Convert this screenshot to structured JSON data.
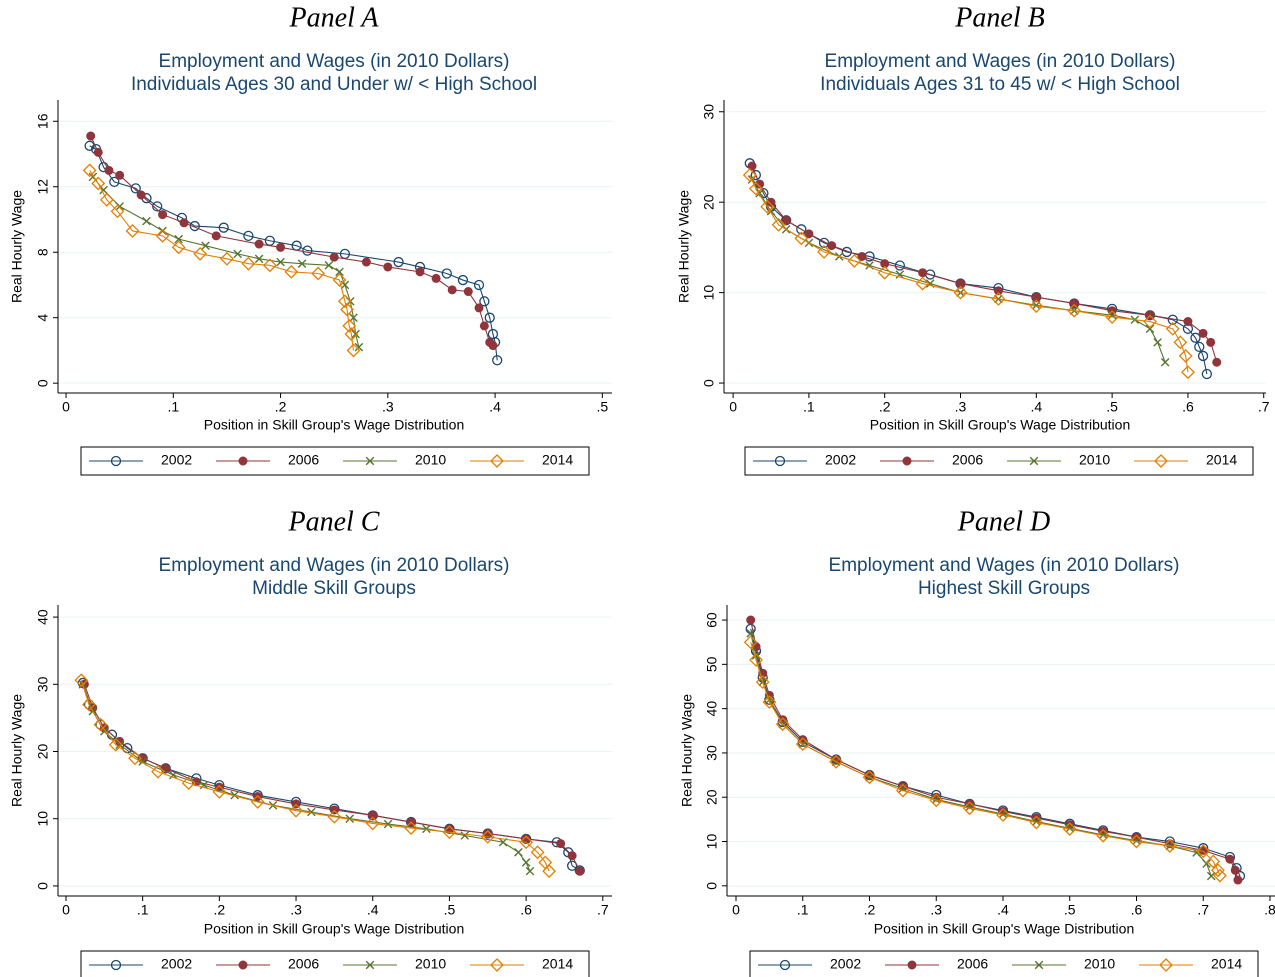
{
  "chart_data": [
    {
      "type": "line",
      "panel_label": "Panel A",
      "title": "Employment and Wages (in 2010 Dollars)",
      "subtitle": "Individuals Ages 30 and Under w/ < High School",
      "xlabel": "Position in Skill Group's Wage Distribution",
      "ylabel": "Real Hourly Wage",
      "xlim": [
        -0.0075,
        0.509
      ],
      "ylim": [
        -0.6,
        17.3
      ],
      "xticks": [
        0,
        {
          "value": 0.1,
          "label": ".1"
        },
        {
          "value": 0.2,
          "label": ".2"
        },
        {
          "value": 0.3,
          "label": ".3"
        },
        {
          "value": 0.4,
          "label": ".4"
        },
        {
          "value": 0.5,
          "label": ".5"
        }
      ],
      "yticks": [
        0,
        4,
        8,
        12,
        16
      ],
      "grid": true,
      "legend": "bottom",
      "series": [
        {
          "name": "2002",
          "color": "#1a476f",
          "marker": "circle-hollow",
          "x": [
            0.022,
            0.028,
            0.035,
            0.045,
            0.065,
            0.075,
            0.085,
            0.108,
            0.12,
            0.147,
            0.17,
            0.19,
            0.215,
            0.225,
            0.26,
            0.31,
            0.33,
            0.355,
            0.37,
            0.385,
            0.39,
            0.395,
            0.398,
            0.4,
            0.402
          ],
          "values": [
            14.5,
            14.3,
            13.2,
            12.3,
            11.9,
            11.3,
            10.8,
            10.1,
            9.6,
            9.5,
            9.0,
            8.7,
            8.4,
            8.1,
            7.9,
            7.4,
            7.1,
            6.7,
            6.3,
            6.0,
            5.0,
            4.0,
            3.0,
            2.5,
            1.4
          ]
        },
        {
          "name": "2006",
          "color": "#90353b",
          "marker": "circle-filled",
          "x": [
            0.023,
            0.03,
            0.04,
            0.05,
            0.07,
            0.09,
            0.11,
            0.14,
            0.18,
            0.2,
            0.25,
            0.28,
            0.3,
            0.33,
            0.345,
            0.36,
            0.375,
            0.385,
            0.39,
            0.395,
            0.398
          ],
          "values": [
            15.1,
            14.1,
            13.0,
            12.7,
            11.5,
            10.3,
            9.8,
            9.0,
            8.5,
            8.3,
            7.7,
            7.4,
            7.1,
            6.8,
            6.4,
            5.7,
            5.6,
            4.6,
            3.5,
            2.5,
            2.3
          ]
        },
        {
          "name": "2010",
          "color": "#55752f",
          "marker": "x",
          "x": [
            0.025,
            0.035,
            0.05,
            0.075,
            0.09,
            0.105,
            0.13,
            0.16,
            0.18,
            0.2,
            0.22,
            0.245,
            0.255,
            0.26,
            0.265,
            0.268,
            0.27,
            0.273
          ],
          "values": [
            12.6,
            11.8,
            10.8,
            9.9,
            9.3,
            8.8,
            8.4,
            7.9,
            7.6,
            7.4,
            7.3,
            7.2,
            6.8,
            6.0,
            5.0,
            4.0,
            3.0,
            2.2
          ]
        },
        {
          "name": "2014",
          "color": "#e37e00",
          "marker": "diamond-hollow",
          "x": [
            0.022,
            0.03,
            0.038,
            0.048,
            0.062,
            0.09,
            0.105,
            0.125,
            0.15,
            0.17,
            0.19,
            0.21,
            0.235,
            0.255,
            0.26,
            0.262,
            0.264,
            0.266,
            0.268
          ],
          "values": [
            13.0,
            12.2,
            11.2,
            10.5,
            9.3,
            9.0,
            8.3,
            7.9,
            7.6,
            7.3,
            7.2,
            6.8,
            6.7,
            6.3,
            5.0,
            4.5,
            3.5,
            3.0,
            2.0
          ]
        }
      ]
    },
    {
      "type": "line",
      "panel_label": "Panel B",
      "title": "Employment and Wages (in 2010 Dollars)",
      "subtitle": "Individuals Ages 31 to 45 w/ < High School",
      "xlabel": "Position in Skill Group's Wage Distribution",
      "ylabel": "Real Hourly Wage",
      "xlim": [
        -0.012,
        0.703
      ],
      "ylim": [
        -1.1,
        31.3
      ],
      "xticks": [
        0,
        {
          "value": 0.1,
          "label": ".1"
        },
        {
          "value": 0.2,
          "label": ".2"
        },
        {
          "value": 0.3,
          "label": ".3"
        },
        {
          "value": 0.4,
          "label": ".4"
        },
        {
          "value": 0.5,
          "label": ".5"
        },
        {
          "value": 0.6,
          "label": ".6"
        },
        {
          "value": 0.7,
          "label": ".7"
        }
      ],
      "yticks": [
        0,
        10,
        20,
        30
      ],
      "grid": true,
      "legend": "bottom",
      "series": [
        {
          "name": "2002",
          "color": "#1a476f",
          "marker": "circle-hollow",
          "x": [
            0.022,
            0.03,
            0.04,
            0.05,
            0.07,
            0.09,
            0.12,
            0.15,
            0.18,
            0.22,
            0.26,
            0.3,
            0.35,
            0.4,
            0.45,
            0.5,
            0.55,
            0.58,
            0.6,
            0.61,
            0.615,
            0.62,
            0.625
          ],
          "values": [
            24.3,
            23,
            21,
            19.5,
            18,
            17,
            15.5,
            14.5,
            14,
            13,
            12,
            11,
            10.5,
            9.5,
            8.8,
            8.2,
            7.5,
            7,
            6,
            5,
            4,
            3,
            1.0
          ]
        },
        {
          "name": "2006",
          "color": "#90353b",
          "marker": "circle-filled",
          "x": [
            0.025,
            0.035,
            0.05,
            0.07,
            0.1,
            0.13,
            0.17,
            0.2,
            0.25,
            0.3,
            0.35,
            0.4,
            0.45,
            0.5,
            0.55,
            0.6,
            0.62,
            0.63,
            0.638
          ],
          "values": [
            24,
            22,
            20,
            18,
            16.5,
            15.2,
            14,
            13.2,
            12.2,
            11,
            10.2,
            9.5,
            8.8,
            8,
            7.5,
            6.8,
            5.5,
            4.5,
            2.3
          ]
        },
        {
          "name": "2010",
          "color": "#55752f",
          "marker": "x",
          "x": [
            0.025,
            0.035,
            0.05,
            0.07,
            0.1,
            0.14,
            0.18,
            0.22,
            0.26,
            0.3,
            0.35,
            0.4,
            0.45,
            0.5,
            0.53,
            0.55,
            0.56,
            0.57
          ],
          "values": [
            22.5,
            21,
            19,
            17,
            15.5,
            14,
            13,
            12,
            11,
            10,
            9.3,
            8.6,
            8,
            7.5,
            7,
            6,
            4.5,
            2.3
          ]
        },
        {
          "name": "2014",
          "color": "#e37e00",
          "marker": "diamond-hollow",
          "x": [
            0.022,
            0.03,
            0.045,
            0.06,
            0.09,
            0.12,
            0.16,
            0.2,
            0.25,
            0.3,
            0.35,
            0.4,
            0.45,
            0.5,
            0.55,
            0.58,
            0.59,
            0.597,
            0.6
          ],
          "values": [
            23,
            21.5,
            19.5,
            17.5,
            16,
            14.5,
            13.5,
            12.2,
            11,
            10,
            9.3,
            8.5,
            8,
            7.3,
            6.8,
            6,
            4.5,
            3,
            1.2
          ]
        }
      ]
    },
    {
      "type": "line",
      "panel_label": "Panel C",
      "title": "Employment and Wages (in 2010 Dollars)",
      "subtitle": "Middle Skill Groups",
      "xlabel": "Position in Skill Group's Wage Distribution",
      "ylabel": "Real Hourly Wage",
      "xlim": [
        -0.0104,
        0.712
      ],
      "ylim": [
        -1.5,
        41.8
      ],
      "xticks": [
        0,
        {
          "value": 0.1,
          "label": ".1"
        },
        {
          "value": 0.2,
          "label": ".2"
        },
        {
          "value": 0.3,
          "label": ".3"
        },
        {
          "value": 0.4,
          "label": ".4"
        },
        {
          "value": 0.5,
          "label": ".5"
        },
        {
          "value": 0.6,
          "label": ".6"
        },
        {
          "value": 0.7,
          "label": ".7"
        }
      ],
      "yticks": [
        0,
        10,
        20,
        30,
        40
      ],
      "grid": true,
      "legend": "bottom",
      "series": [
        {
          "name": "2002",
          "color": "#1a476f",
          "marker": "circle-hollow",
          "x": [
            0.022,
            0.03,
            0.045,
            0.06,
            0.08,
            0.1,
            0.13,
            0.17,
            0.2,
            0.25,
            0.3,
            0.35,
            0.4,
            0.45,
            0.5,
            0.55,
            0.6,
            0.64,
            0.655,
            0.66,
            0.67
          ],
          "values": [
            30.2,
            27,
            24,
            22.5,
            20.5,
            19,
            17.5,
            16,
            15,
            13.5,
            12.5,
            11.5,
            10.5,
            9.5,
            8.5,
            7.8,
            7,
            6.5,
            5,
            3,
            2.3
          ]
        },
        {
          "name": "2006",
          "color": "#90353b",
          "marker": "circle-filled",
          "x": [
            0.024,
            0.035,
            0.05,
            0.07,
            0.1,
            0.13,
            0.17,
            0.2,
            0.25,
            0.3,
            0.35,
            0.4,
            0.45,
            0.5,
            0.55,
            0.6,
            0.645,
            0.66,
            0.67
          ],
          "values": [
            30,
            26.5,
            23.5,
            21.5,
            19,
            17.5,
            15.5,
            14.7,
            13.3,
            12.2,
            11.3,
            10.5,
            9.5,
            8.5,
            7.8,
            7,
            6.3,
            4.5,
            2.2
          ]
        },
        {
          "name": "2010",
          "color": "#55752f",
          "marker": "x",
          "x": [
            0.022,
            0.035,
            0.05,
            0.07,
            0.1,
            0.14,
            0.18,
            0.22,
            0.27,
            0.32,
            0.37,
            0.42,
            0.47,
            0.52,
            0.57,
            0.59,
            0.6,
            0.605
          ],
          "values": [
            30,
            26,
            23,
            21,
            18.5,
            16.5,
            15,
            13.5,
            12,
            11,
            10,
            9.2,
            8.5,
            7.5,
            6.5,
            5,
            3.5,
            2.2
          ]
        },
        {
          "name": "2014",
          "color": "#e37e00",
          "marker": "diamond-hollow",
          "x": [
            0.02,
            0.03,
            0.045,
            0.065,
            0.09,
            0.12,
            0.16,
            0.2,
            0.25,
            0.3,
            0.35,
            0.4,
            0.45,
            0.5,
            0.55,
            0.6,
            0.615,
            0.625,
            0.63
          ],
          "values": [
            30.6,
            27,
            24,
            21,
            19,
            17,
            15.3,
            14,
            12.5,
            11.2,
            10.3,
            9.3,
            8.6,
            8,
            7.3,
            6.5,
            5,
            3.5,
            2.2
          ]
        }
      ]
    },
    {
      "type": "line",
      "panel_label": "Panel D",
      "title": "Employment and Wages (in 2010 Dollars)",
      "subtitle": "Highest Skill Groups",
      "xlabel": "Position in Skill Group's Wage Distribution",
      "ylabel": "Real Hourly Wage",
      "xlim": [
        -0.0135,
        0.8075
      ],
      "ylim": [
        -2.3,
        63.4
      ],
      "xticks": [
        0,
        {
          "value": 0.1,
          "label": ".1"
        },
        {
          "value": 0.2,
          "label": ".2"
        },
        {
          "value": 0.3,
          "label": ".3"
        },
        {
          "value": 0.4,
          "label": ".4"
        },
        {
          "value": 0.5,
          "label": ".5"
        },
        {
          "value": 0.6,
          "label": ".6"
        },
        {
          "value": 0.7,
          "label": ".7"
        },
        {
          "value": 0.8,
          "label": ".8"
        }
      ],
      "yticks": [
        0,
        10,
        20,
        30,
        40,
        50,
        60
      ],
      "grid": true,
      "legend": "bottom",
      "series": [
        {
          "name": "2002",
          "color": "#1a476f",
          "marker": "circle-hollow",
          "x": [
            0.022,
            0.03,
            0.04,
            0.05,
            0.07,
            0.1,
            0.15,
            0.2,
            0.25,
            0.3,
            0.35,
            0.4,
            0.45,
            0.5,
            0.55,
            0.6,
            0.65,
            0.7,
            0.74,
            0.75,
            0.755
          ],
          "values": [
            58,
            53,
            47,
            42,
            37,
            32.5,
            28.5,
            25,
            22.5,
            20.5,
            18.5,
            17,
            15.5,
            14,
            12.5,
            11,
            10,
            8.5,
            6.5,
            4,
            2.2
          ]
        },
        {
          "name": "2006",
          "color": "#90353b",
          "marker": "circle-filled",
          "x": [
            0.022,
            0.03,
            0.04,
            0.05,
            0.07,
            0.1,
            0.15,
            0.2,
            0.25,
            0.3,
            0.35,
            0.4,
            0.45,
            0.5,
            0.55,
            0.6,
            0.65,
            0.7,
            0.74,
            0.748,
            0.752
          ],
          "values": [
            60,
            54,
            48,
            43,
            37.5,
            33,
            28.5,
            25,
            22.5,
            20,
            18.5,
            16.8,
            15.3,
            13.8,
            12.3,
            11,
            9.5,
            8,
            6,
            3.5,
            1.3
          ]
        },
        {
          "name": "2010",
          "color": "#55752f",
          "marker": "x",
          "x": [
            0.022,
            0.03,
            0.04,
            0.05,
            0.07,
            0.1,
            0.15,
            0.2,
            0.25,
            0.3,
            0.35,
            0.4,
            0.45,
            0.5,
            0.55,
            0.6,
            0.65,
            0.69,
            0.705,
            0.712
          ],
          "values": [
            57,
            52,
            46,
            42,
            36.5,
            32,
            28,
            24.5,
            22,
            19.5,
            17.8,
            16.2,
            14.5,
            13,
            11.5,
            10.2,
            9,
            7.5,
            5,
            2.2
          ]
        },
        {
          "name": "2014",
          "color": "#e37e00",
          "marker": "diamond-hollow",
          "x": [
            0.022,
            0.03,
            0.04,
            0.05,
            0.07,
            0.1,
            0.15,
            0.2,
            0.25,
            0.3,
            0.35,
            0.4,
            0.45,
            0.5,
            0.55,
            0.6,
            0.65,
            0.7,
            0.715,
            0.722,
            0.725
          ],
          "values": [
            55,
            51,
            46,
            41.5,
            36.5,
            32,
            28,
            24.5,
            21.5,
            19.3,
            17.5,
            16,
            14.3,
            12.8,
            11.3,
            10,
            9,
            7.8,
            5.5,
            3.5,
            2.3
          ]
        }
      ]
    }
  ]
}
